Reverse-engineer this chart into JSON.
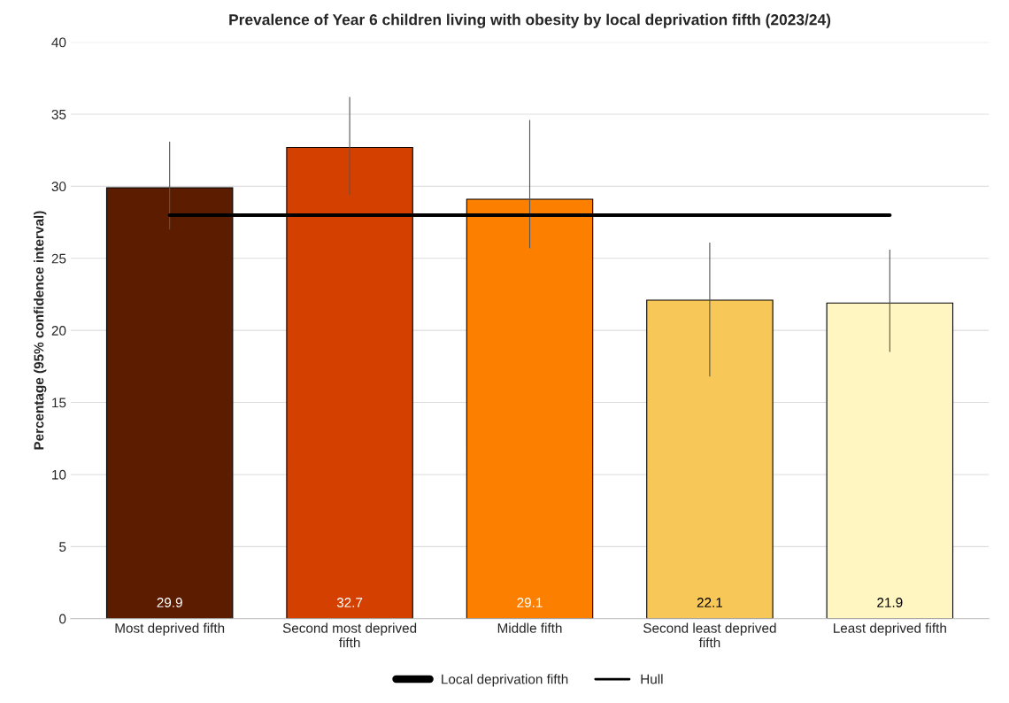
{
  "chart_data": {
    "type": "bar",
    "title": "Prevalence of Year 6 children living with obesity by local deprivation fifth (2023/24)",
    "ylabel": "Percentage (95% confidence interval)",
    "categories": [
      "Most deprived fifth",
      "Second most deprived fifth",
      "Middle fifth",
      "Second least deprived fifth",
      "Least deprived fifth"
    ],
    "series": [
      {
        "name": "Local deprivation fifth",
        "colors": [
          "#5c1c00",
          "#d44000",
          "#fd7f00",
          "#f7c858",
          "#fff6c2"
        ],
        "values": [
          29.9,
          32.7,
          29.1,
          22.1,
          21.9
        ],
        "errors": [
          [
            27.0,
            33.1
          ],
          [
            29.4,
            36.2
          ],
          [
            25.7,
            34.6
          ],
          [
            16.8,
            26.1
          ],
          [
            18.5,
            25.6
          ]
        ],
        "data_labels": true
      },
      {
        "name": "Hull",
        "type": "line",
        "color": "#000000",
        "values": [
          28.0,
          28.0,
          28.0,
          28.0,
          28.0
        ]
      }
    ],
    "ylim": [
      0,
      40
    ],
    "yticks": [
      0,
      5,
      10,
      15,
      20,
      25,
      30,
      35,
      40
    ],
    "grid": "y",
    "legend": "bottom"
  }
}
